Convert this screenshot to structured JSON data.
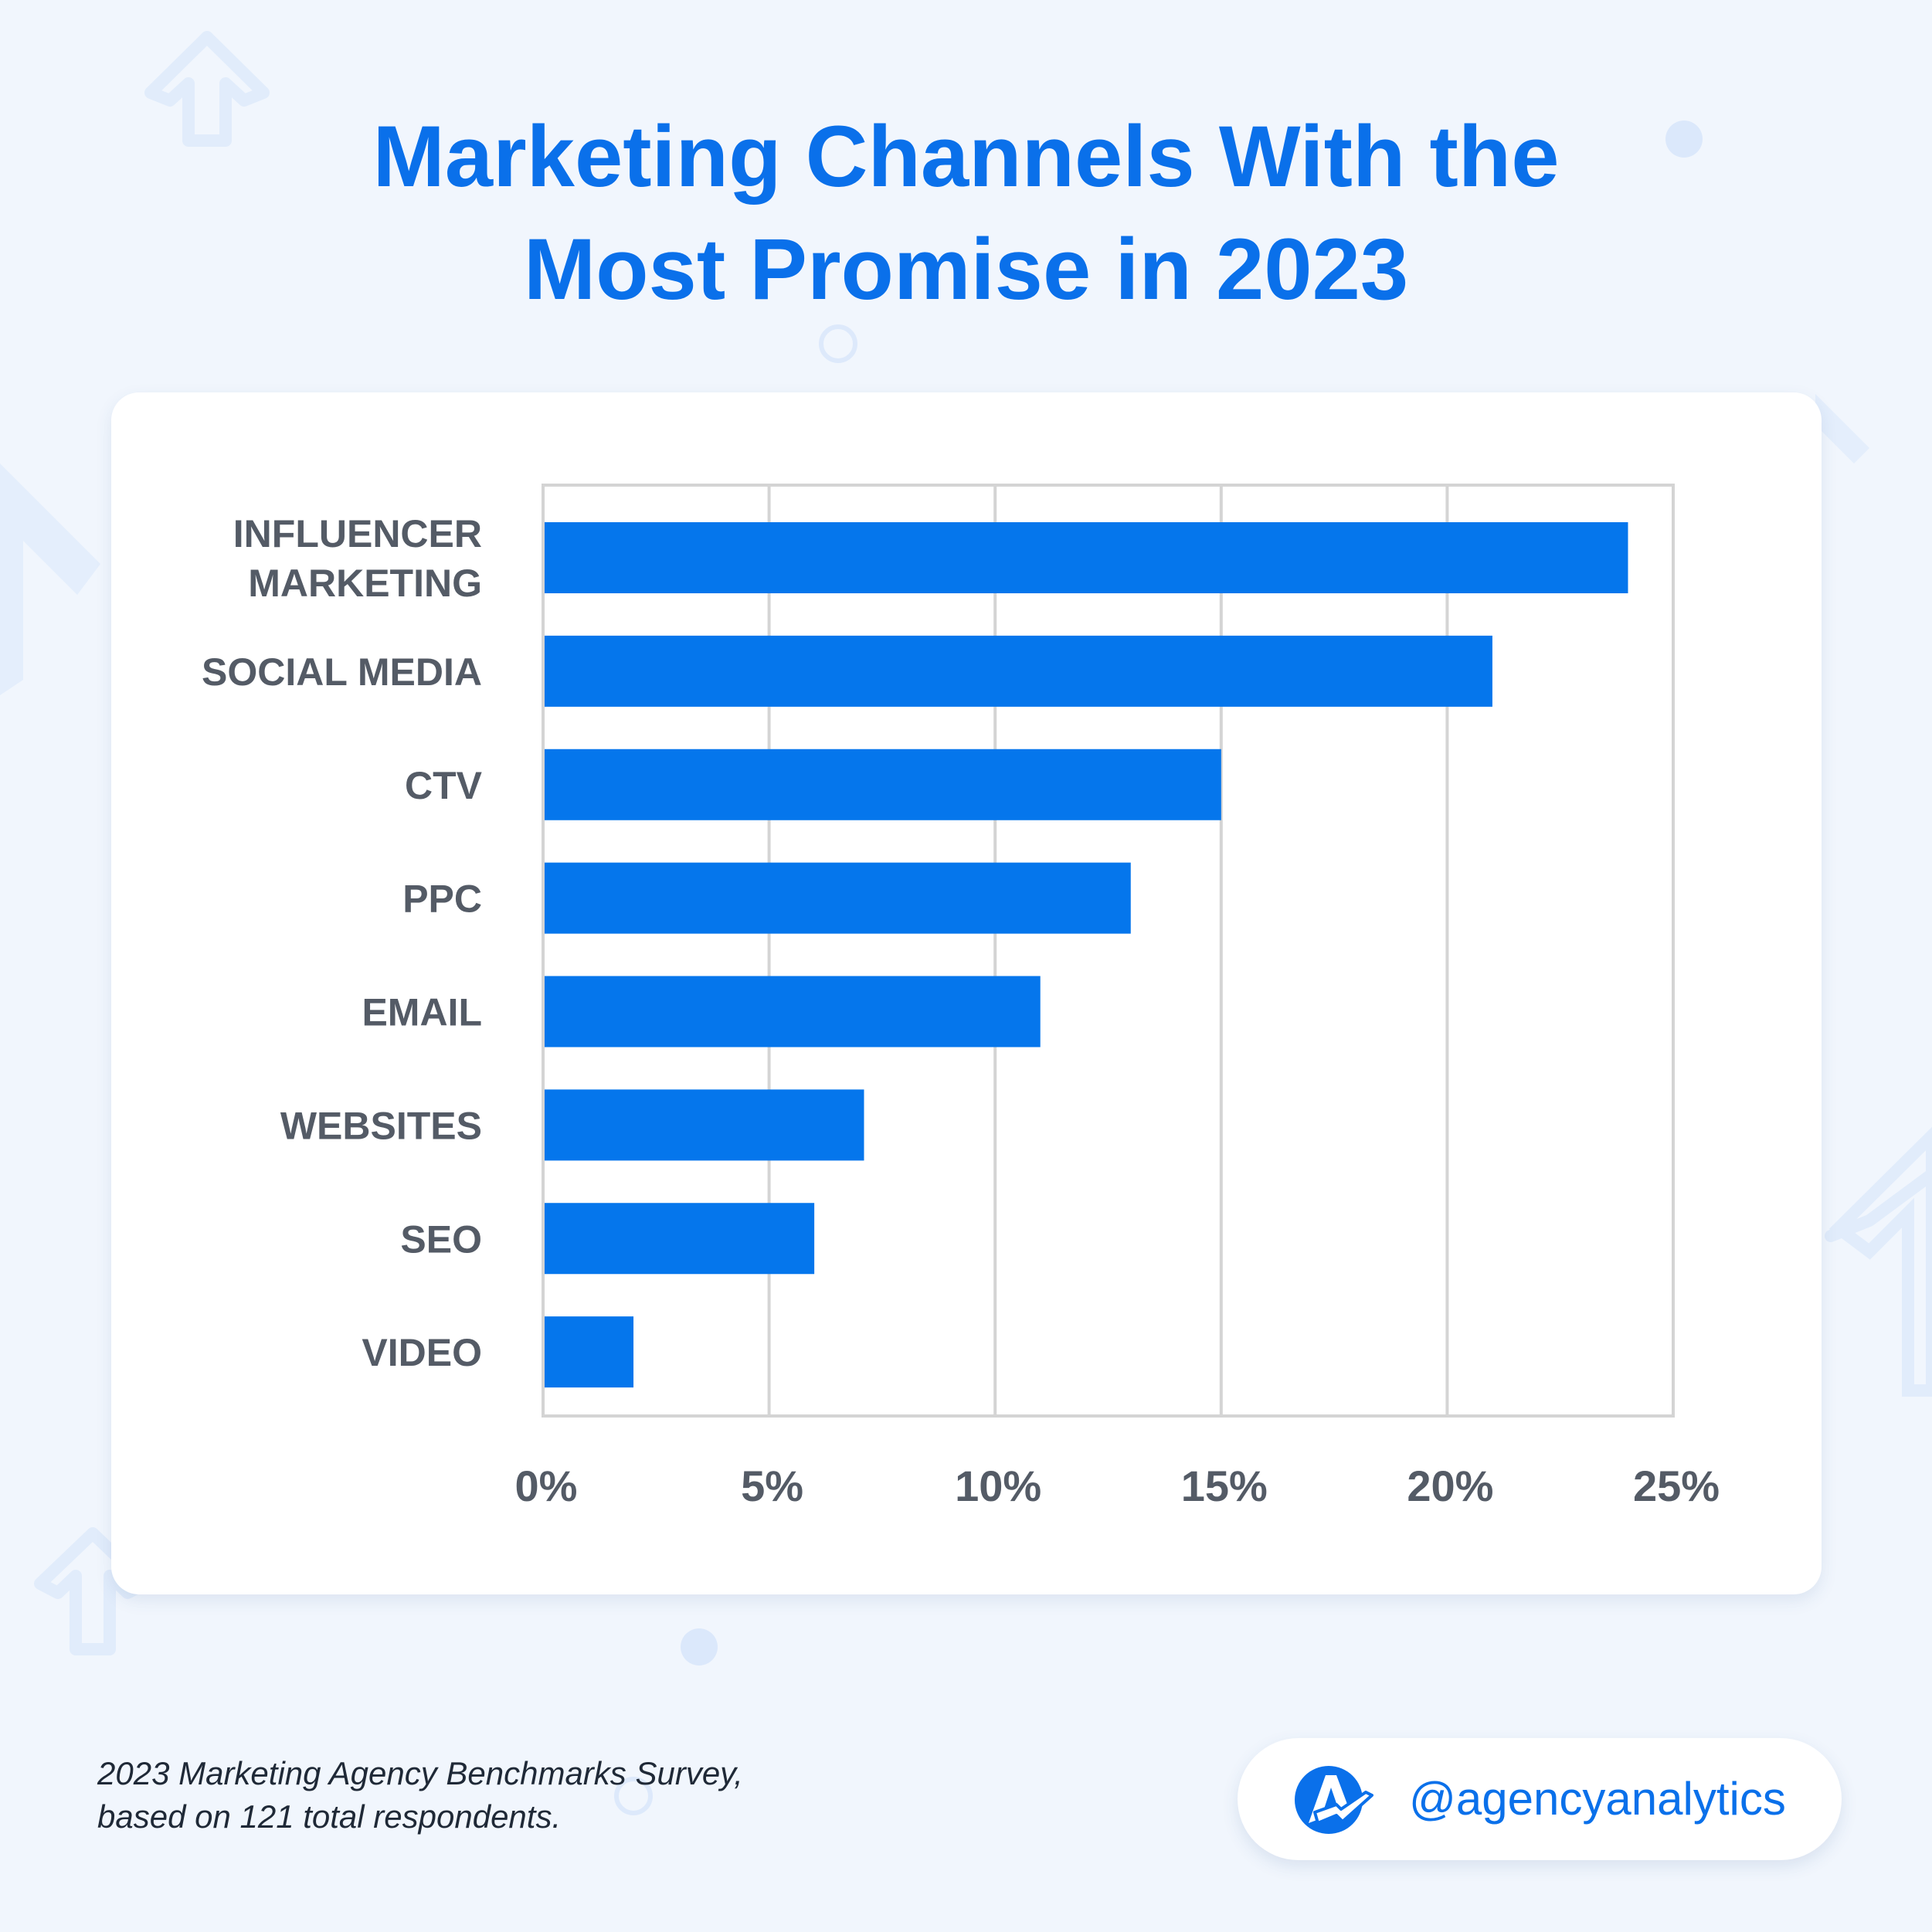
{
  "title": {
    "line1": "Marketing Channels With the",
    "line2": "Most Promise in 2023"
  },
  "chart_data": {
    "type": "bar",
    "orientation": "horizontal",
    "title": "Marketing Channels With the Most Promise in 2023",
    "xlabel": "",
    "ylabel": "",
    "categories": [
      "INFLUENCER MARKETING",
      "SOCIAL MEDIA",
      "CTV",
      "PPC",
      "EMAIL",
      "WEBSITES",
      "SEO",
      "VIDEO"
    ],
    "category_lines": [
      [
        "INFLUENCER",
        "MARKETING"
      ],
      [
        "SOCIAL MEDIA"
      ],
      [
        "CTV"
      ],
      [
        "PPC"
      ],
      [
        "EMAIL"
      ],
      [
        "WEBSITES"
      ],
      [
        "SEO"
      ],
      [
        "VIDEO"
      ]
    ],
    "values": [
      24,
      21,
      15,
      13,
      11,
      7.1,
      6,
      2
    ],
    "xlim": [
      0,
      25
    ],
    "xticks": [
      0,
      5,
      10,
      15,
      20,
      25
    ],
    "xtick_labels": [
      "0%",
      "5%",
      "10%",
      "15%",
      "20%",
      "25%"
    ],
    "grid": true,
    "legend": "none",
    "bar_color": "#0576ec"
  },
  "source": {
    "line1": "2023 Marketing Agency Benchmarks Survey,",
    "line2": "based on 121 total respondents."
  },
  "handle": {
    "text": "@agencyanalytics",
    "logo_icon": "agencyanalytics-logo-icon"
  },
  "colors": {
    "accent": "#0a70ea",
    "bar": "#0576ec",
    "background": "#f1f6fd",
    "label": "#545b66",
    "grid": "#d4d4d4"
  }
}
